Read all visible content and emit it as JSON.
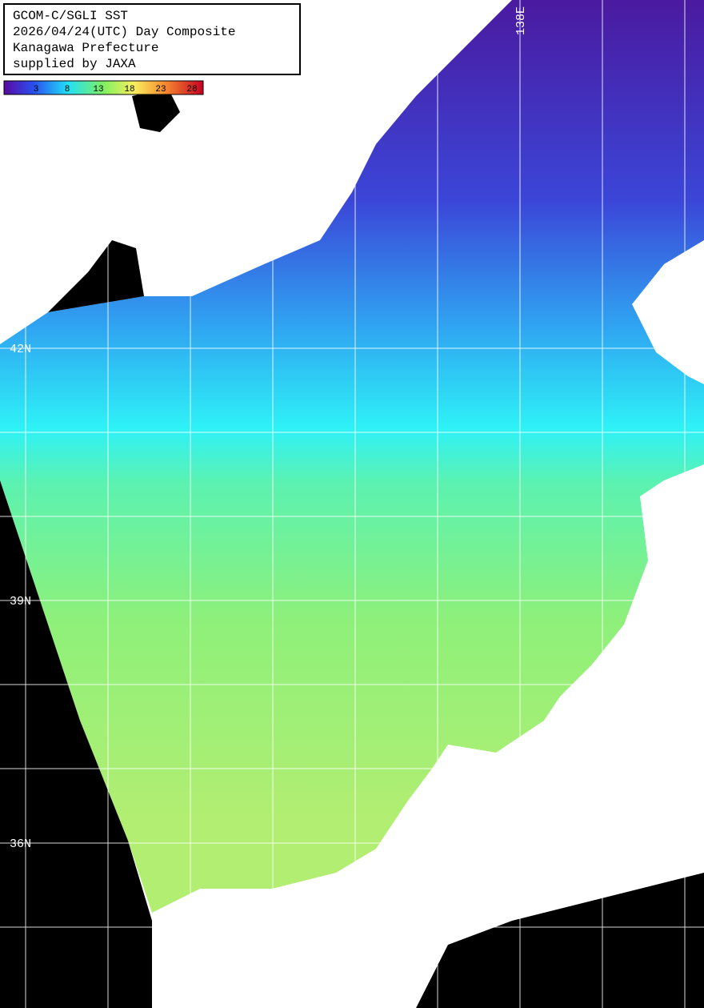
{
  "header": {
    "lines": [
      "GCOM-C/SGLI SST",
      "2026/04/24(UTC) Day Composite",
      "Kanagawa Prefecture",
      "supplied by JAXA"
    ]
  },
  "colorbar": {
    "ticks": [
      3,
      8,
      13,
      18,
      23,
      28
    ]
  },
  "grid_labels": {
    "latitudes": [
      "42N",
      "39N",
      "36N"
    ],
    "longitudes": [
      "138E"
    ]
  }
}
